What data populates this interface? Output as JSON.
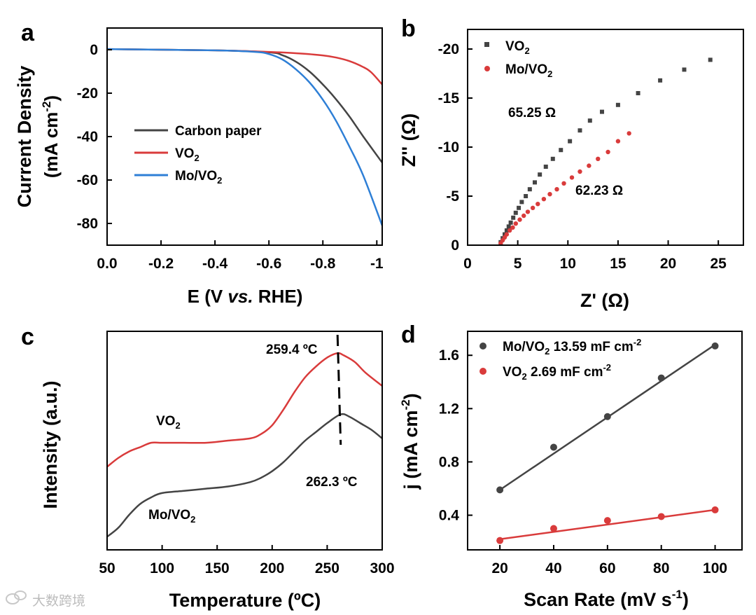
{
  "chart_data": [
    {
      "panel": "a",
      "type": "line",
      "xlabel_main": "E (V ",
      "xlabel_italic": "vs.",
      "xlabel_tail": " RHE)",
      "ylabel_line1": "Current Density",
      "ylabel_line2_pre": "(mA cm",
      "ylabel_line2_sup": "-2",
      "ylabel_line2_post": ")",
      "xlim": [
        0.0,
        -1.02
      ],
      "ylim": [
        -90,
        10
      ],
      "xticks": [
        0.0,
        -0.2,
        -0.4,
        -0.6,
        -0.8,
        -1.0
      ],
      "xtick_labels": [
        "0.0",
        "-0.2",
        "-0.4",
        "-0.6",
        "-0.8",
        "-1"
      ],
      "yticks": [
        0,
        -20,
        -40,
        -60,
        -80
      ],
      "ytick_labels": [
        "0",
        "-20",
        "-40",
        "-60",
        "-80"
      ],
      "legend": [
        {
          "label": "Carbon paper",
          "color": "#444444"
        },
        {
          "label_main": "VO",
          "label_sub": "2",
          "color": "#d93b3b"
        },
        {
          "label_main": "Mo/VO",
          "label_sub": "2",
          "color": "#2e7fd6"
        }
      ],
      "series": [
        {
          "name": "Carbon paper",
          "color": "#444444",
          "x": [
            0.0,
            -0.4,
            -0.6,
            -0.65,
            -0.7,
            -0.75,
            -0.8,
            -0.85,
            -0.9,
            -0.95,
            -1.02
          ],
          "y": [
            0.3,
            -0.3,
            -1.2,
            -2.5,
            -5.5,
            -10,
            -16,
            -23,
            -31,
            -40,
            -52
          ]
        },
        {
          "name": "VO2",
          "color": "#d93b3b",
          "x": [
            0.0,
            -0.4,
            -0.6,
            -0.7,
            -0.8,
            -0.85,
            -0.9,
            -0.95,
            -0.98,
            -1.02
          ],
          "y": [
            0.3,
            -0.3,
            -1.0,
            -1.6,
            -2.6,
            -3.6,
            -5.3,
            -8.0,
            -10.5,
            -16
          ]
        },
        {
          "name": "Mo/VO2",
          "color": "#2e7fd6",
          "x": [
            0.0,
            -0.4,
            -0.55,
            -0.6,
            -0.65,
            -0.7,
            -0.75,
            -0.8,
            -0.85,
            -0.9,
            -0.95,
            -1.02
          ],
          "y": [
            0.3,
            -0.3,
            -1.0,
            -2.0,
            -4.5,
            -9,
            -15,
            -23,
            -33,
            -45,
            -58,
            -81
          ]
        }
      ]
    },
    {
      "panel": "b",
      "type": "scatter",
      "xlabel": "Z' (Ω)",
      "ylabel": "Z'' (Ω)",
      "xlim": [
        0,
        27.5
      ],
      "ylim": [
        0,
        -22
      ],
      "xticks": [
        0,
        5,
        10,
        15,
        20,
        25
      ],
      "xtick_labels": [
        "0",
        "5",
        "10",
        "15",
        "20",
        "25"
      ],
      "yticks": [
        0,
        -5,
        -10,
        -15,
        -20
      ],
      "ytick_labels": [
        "0",
        "-5",
        "-10",
        "-15",
        "-20"
      ],
      "annotations": [
        "65.25 Ω",
        "62.23 Ω"
      ],
      "legend": [
        {
          "label_main": "VO",
          "label_sub": "2",
          "color": "#444444",
          "marker": "square"
        },
        {
          "label_main": "Mo/VO",
          "label_sub": "2",
          "color": "#d93b3b",
          "marker": "circle"
        }
      ],
      "series": [
        {
          "name": "VO2",
          "color": "#444444",
          "marker": "square",
          "x": [
            3.3,
            3.5,
            3.7,
            3.9,
            4.1,
            4.3,
            4.55,
            4.8,
            5.1,
            5.4,
            5.8,
            6.2,
            6.7,
            7.2,
            7.8,
            8.5,
            9.3,
            10.2,
            11.2,
            12.2,
            13.4,
            15.0,
            17.0,
            19.2,
            21.6,
            24.2
          ],
          "y": [
            -0.3,
            -0.7,
            -1.1,
            -1.5,
            -1.9,
            -2.3,
            -2.8,
            -3.3,
            -3.8,
            -4.4,
            -5.0,
            -5.7,
            -6.4,
            -7.2,
            -8.0,
            -8.8,
            -9.7,
            -10.6,
            -11.7,
            -12.7,
            -13.6,
            -14.3,
            -15.5,
            -16.8,
            -17.9,
            -18.9
          ]
        },
        {
          "name": "Mo/VO2",
          "color": "#d93b3b",
          "marker": "circle",
          "x": [
            3.3,
            3.5,
            3.7,
            3.9,
            4.2,
            4.5,
            4.8,
            5.2,
            5.6,
            6.0,
            6.5,
            7.0,
            7.6,
            8.2,
            8.9,
            9.6,
            10.4,
            11.2,
            12.1,
            13.0,
            14.0,
            15.0,
            16.1
          ],
          "y": [
            -0.2,
            -0.5,
            -0.8,
            -1.1,
            -1.5,
            -1.8,
            -2.2,
            -2.6,
            -3.0,
            -3.4,
            -3.8,
            -4.2,
            -4.7,
            -5.2,
            -5.7,
            -6.3,
            -6.9,
            -7.5,
            -8.1,
            -8.8,
            -9.5,
            -10.6,
            -11.4
          ]
        }
      ]
    },
    {
      "panel": "c",
      "type": "line",
      "xlabel": "Temperature (ºC)",
      "ylabel": "Intensity (a.u.)",
      "xlim": [
        50,
        300
      ],
      "ylim": [
        0,
        1
      ],
      "xticks": [
        50,
        100,
        150,
        200,
        250,
        300
      ],
      "xtick_labels": [
        "50",
        "100",
        "150",
        "200",
        "250",
        "300"
      ],
      "annotations": [
        "259.4 ºC",
        "262.3 ºC"
      ],
      "peak_line_x": [
        259.4,
        262.3
      ],
      "curve_labels": [
        {
          "label_main": "VO",
          "label_sub": "2"
        },
        {
          "label_main": "Mo/VO",
          "label_sub": "2"
        }
      ],
      "series": [
        {
          "name": "VO2",
          "color": "#d93b3b",
          "x": [
            50,
            60,
            70,
            80,
            90,
            100,
            120,
            140,
            160,
            180,
            190,
            200,
            210,
            220,
            230,
            240,
            250,
            259.4,
            265,
            275,
            285,
            300
          ],
          "y": [
            0.38,
            0.42,
            0.45,
            0.47,
            0.49,
            0.49,
            0.49,
            0.49,
            0.5,
            0.51,
            0.53,
            0.57,
            0.64,
            0.72,
            0.79,
            0.84,
            0.88,
            0.9,
            0.89,
            0.86,
            0.81,
            0.75
          ]
        },
        {
          "name": "Mo/VO2",
          "color": "#444444",
          "x": [
            50,
            60,
            70,
            80,
            90,
            100,
            120,
            140,
            160,
            180,
            190,
            200,
            210,
            220,
            230,
            240,
            250,
            262.3,
            270,
            280,
            290,
            300
          ],
          "y": [
            0.06,
            0.1,
            0.16,
            0.21,
            0.24,
            0.26,
            0.27,
            0.28,
            0.29,
            0.31,
            0.33,
            0.36,
            0.4,
            0.45,
            0.5,
            0.54,
            0.58,
            0.62,
            0.61,
            0.58,
            0.55,
            0.51
          ]
        }
      ]
    },
    {
      "panel": "d",
      "type": "scatter",
      "xlabel_main": "Scan Rate (mV s",
      "xlabel_sup": "-1",
      "xlabel_post": ")",
      "ylabel_main": "j (mA cm",
      "ylabel_sup": "-2",
      "ylabel_post": ")",
      "xlim": [
        8,
        110
      ],
      "ylim": [
        0.14,
        1.78
      ],
      "xticks": [
        20,
        40,
        60,
        80,
        100
      ],
      "xtick_labels": [
        "20",
        "40",
        "60",
        "80",
        "100"
      ],
      "yticks": [
        0.4,
        0.8,
        1.2,
        1.6
      ],
      "ytick_labels": [
        "0.4",
        "0.8",
        "1.2",
        "1.6"
      ],
      "legend": [
        {
          "label_main": "Mo/VO",
          "label_sub": "2",
          "label_tail": " 13.59 mF cm",
          "label_sup": "-2",
          "color": "#444444"
        },
        {
          "label_main": "VO",
          "label_sub": "2",
          "label_tail": " 2.69 mF cm",
          "label_sup": "-2",
          "color": "#d93b3b"
        }
      ],
      "series": [
        {
          "name": "Mo/VO2",
          "color": "#444444",
          "x": [
            20,
            40,
            60,
            80,
            100
          ],
          "y": [
            0.59,
            0.91,
            1.14,
            1.43,
            1.67
          ],
          "fit": [
            0.59,
            1.68
          ]
        },
        {
          "name": "VO2",
          "color": "#d93b3b",
          "x": [
            20,
            40,
            60,
            80,
            100
          ],
          "y": [
            0.21,
            0.3,
            0.36,
            0.39,
            0.44
          ],
          "fit": [
            0.22,
            0.44
          ]
        }
      ]
    }
  ],
  "panel_letters": [
    "a",
    "b",
    "c",
    "d"
  ],
  "watermark": "大数跨境",
  "watermark_icon": "wechat-icon"
}
